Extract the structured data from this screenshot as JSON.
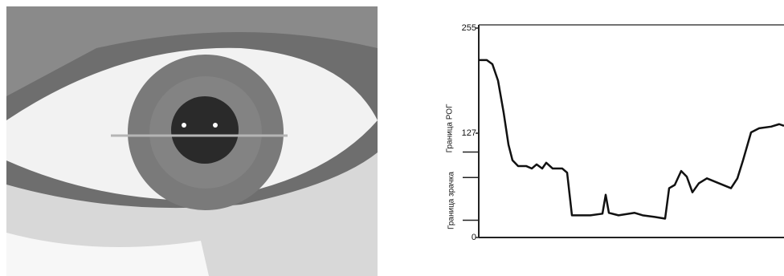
{
  "chart_data": {
    "type": "line",
    "x": [
      0,
      10,
      17,
      24,
      31,
      37,
      42,
      49,
      59,
      66,
      72,
      79,
      84,
      92,
      104,
      110,
      116,
      124,
      139,
      154,
      158,
      162,
      174,
      194,
      204,
      219,
      232,
      237,
      244,
      252,
      259,
      266,
      274,
      284,
      299,
      314,
      322,
      329,
      339,
      349,
      364,
      374,
      380
    ],
    "series": [
      {
        "color": "#111111",
        "values": [
          216,
          216,
          211,
          191,
          152,
          113,
          94,
          87,
          87,
          84,
          89,
          84,
          91,
          84,
          84,
          79,
          27,
          27,
          27,
          29,
          52,
          30,
          27,
          30,
          27,
          25,
          23,
          60,
          64,
          81,
          74,
          55,
          66,
          72,
          66,
          60,
          72,
          94,
          128,
          133,
          135,
          138,
          136
        ]
      }
    ],
    "xlim": [
      0,
      380
    ],
    "ylim": [
      0,
      255
    ],
    "yticks": [
      0,
      127,
      255
    ],
    "marker_levels": [
      104,
      73,
      21
    ],
    "annotations": [
      "Граница РОГ",
      "Граница зрачка"
    ]
  }
}
